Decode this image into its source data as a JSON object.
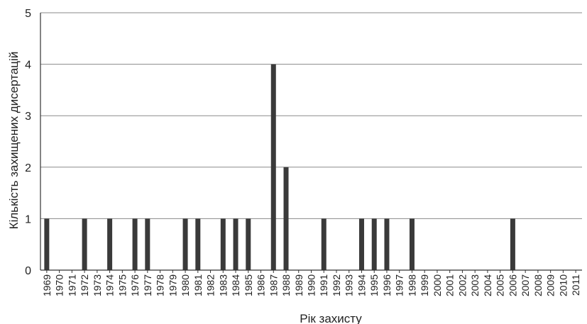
{
  "chart_data": {
    "type": "bar",
    "title": "",
    "xlabel": "Рік захисту",
    "ylabel": "Кількість захищених дисертацій",
    "ylim": [
      0,
      5
    ],
    "yticks": [
      "0",
      "1",
      "2",
      "3",
      "4",
      "5"
    ],
    "grid": "horizontal",
    "legend": "none",
    "bar_color": "#3a3a3a",
    "categories": [
      "1969",
      "1970",
      "1971",
      "1972",
      "1973",
      "1974",
      "1975",
      "1976",
      "1977",
      "1978",
      "1979",
      "1980",
      "1981",
      "1982",
      "1983",
      "1984",
      "1985",
      "1986",
      "1987",
      "1988",
      "1989",
      "1990",
      "1991",
      "1992",
      "1993",
      "1994",
      "1995",
      "1996",
      "1997",
      "1998",
      "1999",
      "2000",
      "2001",
      "2002",
      "2003",
      "2004",
      "2005",
      "2006",
      "2007",
      "2008",
      "2009",
      "2010",
      "2011"
    ],
    "values": [
      1,
      0,
      0,
      1,
      0,
      1,
      0,
      1,
      1,
      0,
      0,
      1,
      1,
      0,
      1,
      1,
      1,
      0,
      4,
      2,
      0,
      0,
      1,
      0,
      0,
      1,
      1,
      1,
      0,
      1,
      0,
      0,
      0,
      0,
      0,
      0,
      0,
      1,
      0,
      0,
      0,
      0,
      0
    ]
  }
}
